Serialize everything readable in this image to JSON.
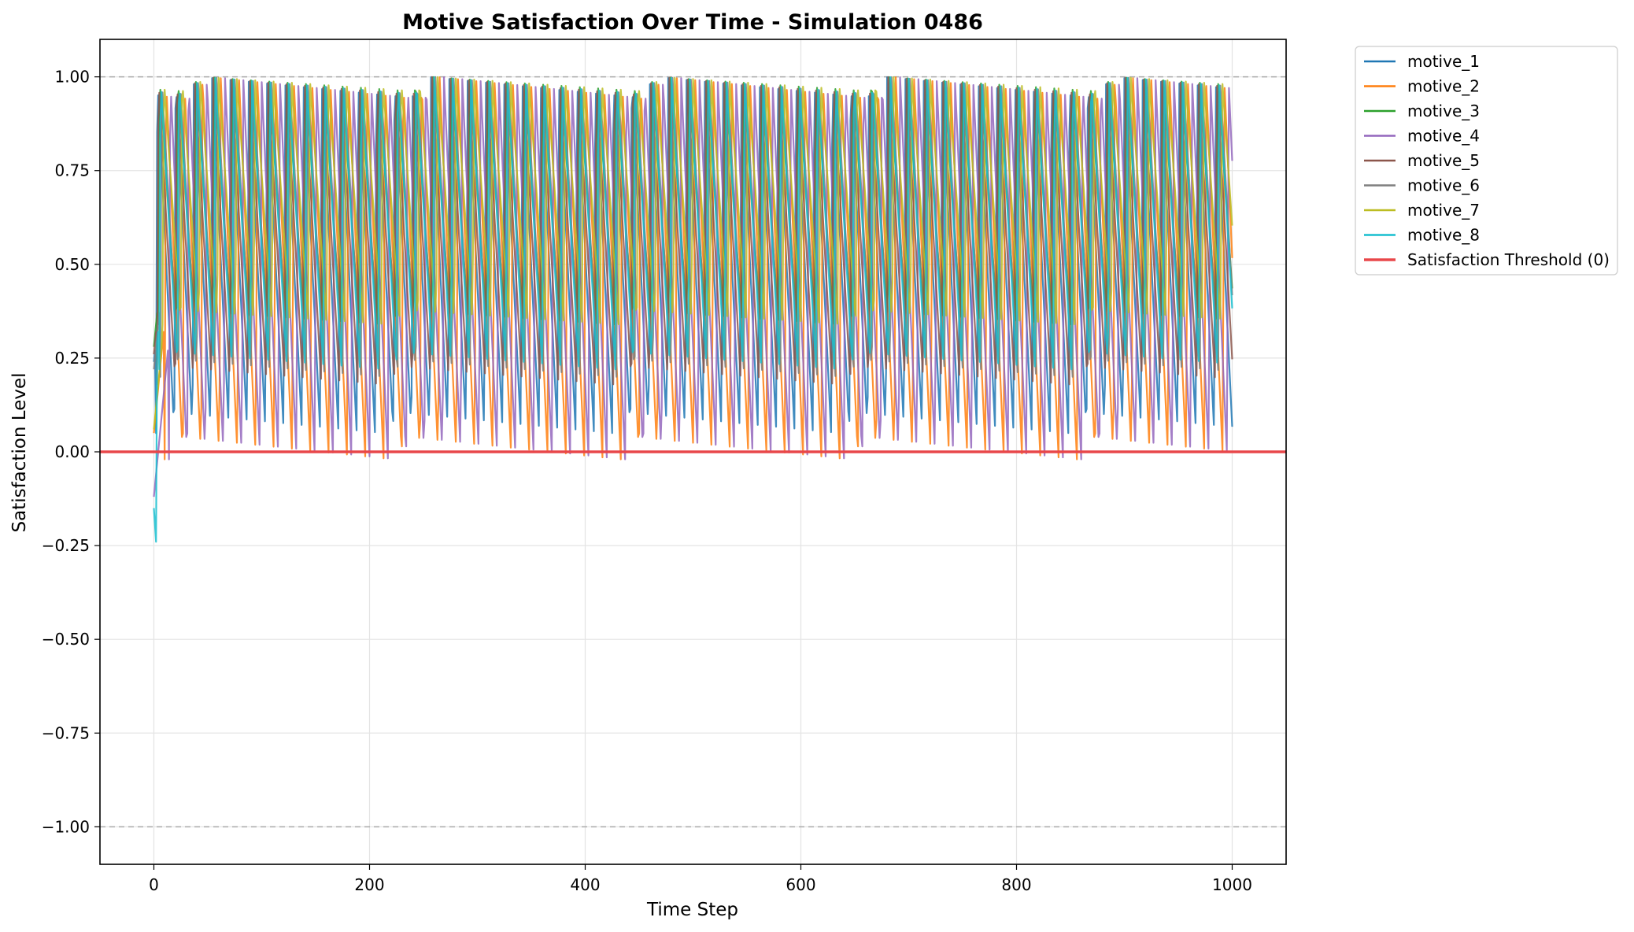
{
  "chart_data": {
    "type": "line",
    "title": "Motive Satisfaction Over Time - Simulation 0486",
    "xlabel": "Time Step",
    "ylabel": "Satisfaction Level",
    "xlim": [
      -50,
      1050
    ],
    "ylim": [
      -1.1,
      1.1
    ],
    "x_ticks": [
      0,
      200,
      400,
      600,
      800,
      1000
    ],
    "x_tick_labels": [
      "0",
      "200",
      "400",
      "600",
      "800",
      "1000"
    ],
    "y_ticks": [
      1.0,
      0.75,
      0.5,
      0.25,
      0.0,
      -0.25,
      -0.5,
      -0.75,
      -1.0
    ],
    "y_tick_labels": [
      "1.00",
      "0.75",
      "0.50",
      "0.25",
      "0.00",
      "−0.25",
      "−0.50",
      "−0.75",
      "−1.00"
    ],
    "grid": true,
    "legend_position": "outside-right-top",
    "reference_lines": [
      {
        "y": 1.0,
        "style": "dashed",
        "color": "#aaaaaa"
      },
      {
        "y": -1.0,
        "style": "dashed",
        "color": "#aaaaaa"
      }
    ],
    "threshold": {
      "name": "Satisfaction Threshold (0)",
      "y": 0.0,
      "color": "#e8474a"
    },
    "series": [
      {
        "name": "motive_1",
        "color": "#1f77b4",
        "period": 16.92,
        "phase": 2,
        "peak": 1.0,
        "trough": 0.05
      },
      {
        "name": "motive_2",
        "color": "#ff7f0e",
        "period": 16.92,
        "phase": 10,
        "peak": 1.0,
        "trough": -0.02
      },
      {
        "name": "motive_3",
        "color": "#2ca02c",
        "period": 16.92,
        "phase": 4,
        "peak": 1.0,
        "trough": 0.34
      },
      {
        "name": "motive_4",
        "color": "#9467bd",
        "period": 16.92,
        "phase": 14,
        "peak": 1.0,
        "trough": -0.02
      },
      {
        "name": "motive_5",
        "color": "#8c564b",
        "period": 16.92,
        "phase": 3,
        "peak": 1.0,
        "trough": 0.18
      },
      {
        "name": "motive_6",
        "color": "#7f7f7f",
        "period": 16.92,
        "phase": 6,
        "peak": 1.0,
        "trough": 0.2
      },
      {
        "name": "motive_7",
        "color": "#bcbd22",
        "period": 16.92,
        "phase": 8,
        "peak": 1.0,
        "trough": 0.34
      },
      {
        "name": "motive_8",
        "color": "#17becf",
        "period": 16.92,
        "phase": 5,
        "peak": 1.0,
        "trough": 0.22
      }
    ]
  }
}
